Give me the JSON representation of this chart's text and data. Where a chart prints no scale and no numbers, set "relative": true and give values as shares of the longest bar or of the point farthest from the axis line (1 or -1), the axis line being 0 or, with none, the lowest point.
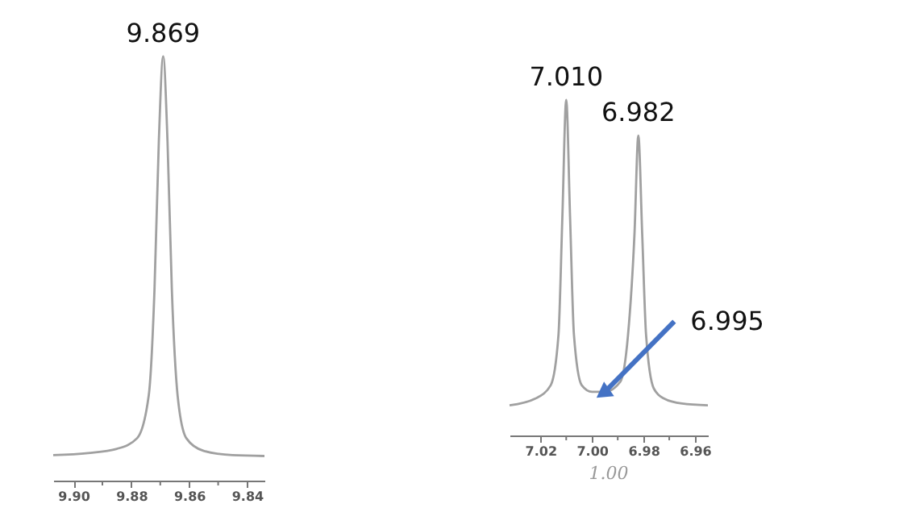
{
  "chart_data": [
    {
      "type": "line",
      "relative": true,
      "x": [
        9.907,
        9.895,
        9.885,
        9.878,
        9.874,
        9.872,
        9.8705,
        9.869,
        9.8675,
        9.866,
        9.864,
        9.861,
        9.855,
        9.845,
        9.834
      ],
      "series": [
        {
          "color": "#a0a0a0",
          "values": [
            0.06,
            0.065,
            0.075,
            0.1,
            0.2,
            0.45,
            0.8,
            1,
            0.8,
            0.45,
            0.2,
            0.1,
            0.07,
            0.06,
            0.058
          ]
        }
      ],
      "xlim": [
        9.907,
        9.834
      ],
      "xticks": [
        {
          "value": 9.9,
          "label": "9.90"
        },
        {
          "value": 9.89,
          "label": null
        },
        {
          "value": 9.88,
          "label": "9.88"
        },
        {
          "value": 9.87,
          "label": null
        },
        {
          "value": 9.86,
          "label": "9.86"
        },
        {
          "value": 9.85,
          "label": null
        },
        {
          "value": 9.84,
          "label": "9.84"
        }
      ],
      "tick_labels": "x",
      "grid": false,
      "marker": "none",
      "line_style": "solid",
      "annotations": [
        {
          "text": "9.869",
          "x": 9.869,
          "y": 1
        }
      ]
    },
    {
      "type": "line",
      "relative": true,
      "x": [
        7.032,
        7.022,
        7.016,
        7.013,
        7.0115,
        7.01,
        7.0085,
        7.007,
        7.004,
        7.0,
        6.995,
        6.989,
        6.986,
        6.9835,
        6.982,
        6.9805,
        6.979,
        6.976,
        6.972,
        6.965,
        6.955
      ],
      "series": [
        {
          "color": "#a0a0a0",
          "values": [
            0.09,
            0.11,
            0.15,
            0.3,
            0.65,
            1,
            0.65,
            0.3,
            0.15,
            0.13,
            0.13,
            0.16,
            0.3,
            0.6,
            0.894,
            0.6,
            0.3,
            0.14,
            0.11,
            0.095,
            0.09
          ]
        }
      ],
      "xlim": [
        7.032,
        6.955
      ],
      "xticks": [
        {
          "value": 7.02,
          "label": "7.02"
        },
        {
          "value": 7.01,
          "label": null
        },
        {
          "value": 7.0,
          "label": "7.00"
        },
        {
          "value": 6.99,
          "label": null
        },
        {
          "value": 6.98,
          "label": "6.98"
        },
        {
          "value": 6.97,
          "label": null
        },
        {
          "value": 6.96,
          "label": "6.96"
        }
      ],
      "tick_labels": "x",
      "grid": false,
      "marker": "none",
      "line_style": "solid",
      "annotations": [
        {
          "text": "7.010",
          "x": 7.01,
          "y": 1
        },
        {
          "text": "6.982",
          "x": 6.982,
          "y": 0.894
        },
        {
          "text": "6.995",
          "x": 6.995,
          "y": 0.13
        },
        "1.00"
      ]
    }
  ]
}
